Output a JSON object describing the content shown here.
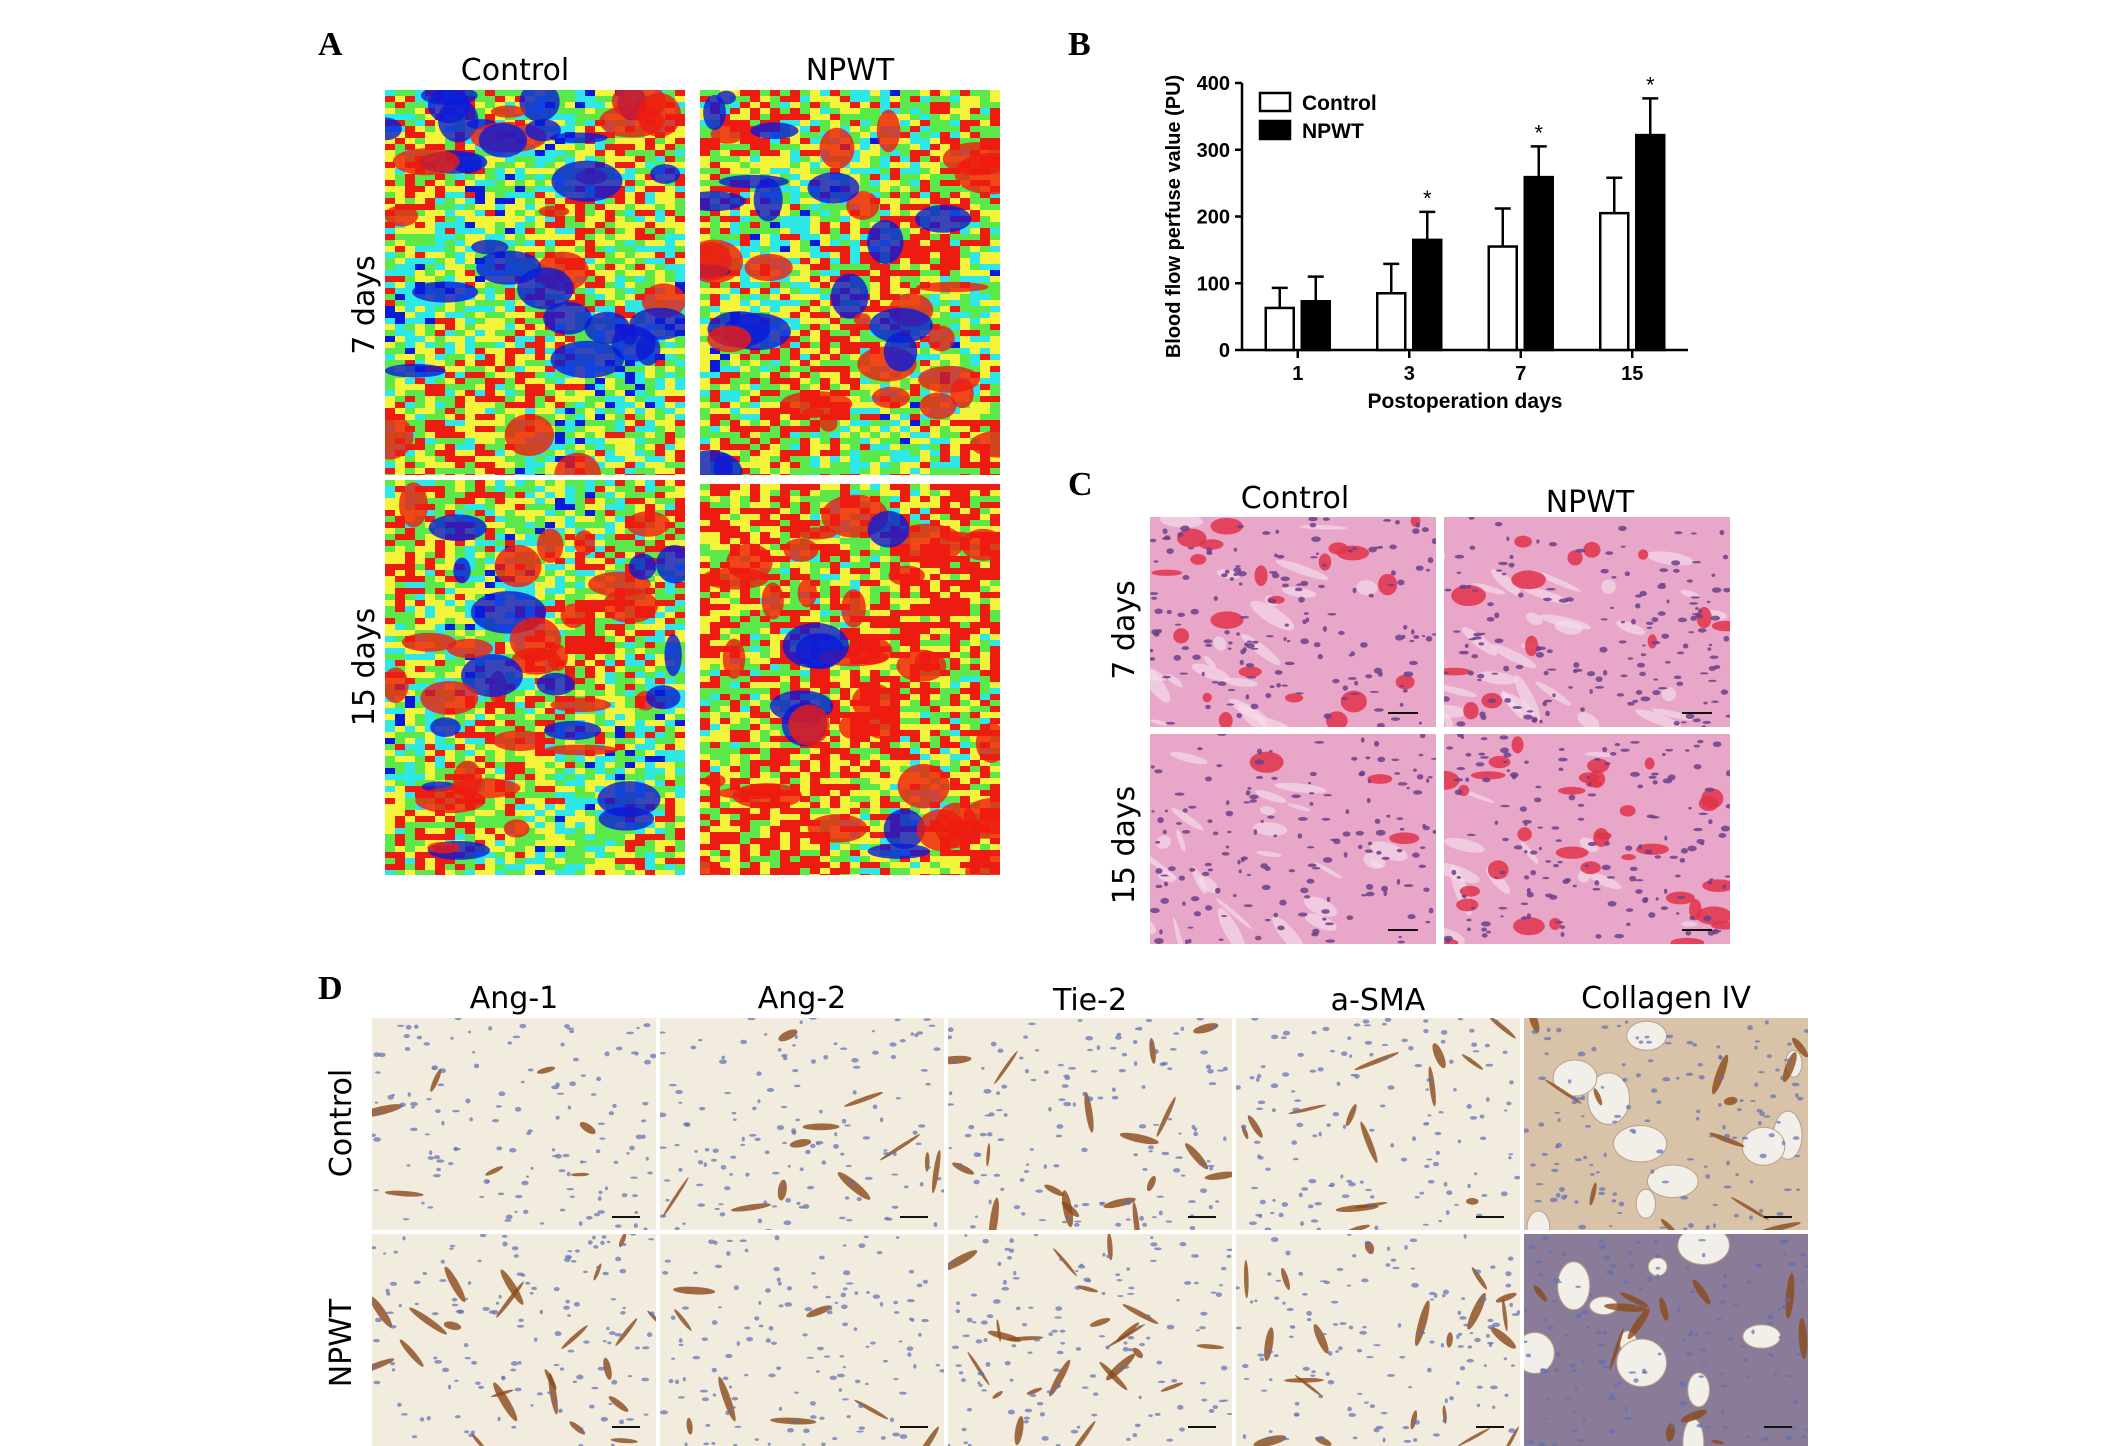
{
  "panel_a": {
    "letter": "A",
    "columns": [
      "Control",
      "NPWT"
    ],
    "rows": [
      "7 days",
      "15 days"
    ]
  },
  "panel_b": {
    "letter": "B"
  },
  "panel_c": {
    "letter": "C",
    "columns": [
      "Control",
      "NPWT"
    ],
    "rows": [
      "7 days",
      "15 days"
    ]
  },
  "panel_d": {
    "letter": "D",
    "columns": [
      "Ang-1",
      "Ang-2",
      "Tie-2",
      "a-SMA",
      "Collagen IV"
    ],
    "rows": [
      "Control",
      "NPWT"
    ]
  },
  "colors": {
    "heat_blue": "#0a1ad8",
    "heat_cyan": "#2ee8e8",
    "heat_green": "#5ae84a",
    "heat_yellow": "#f4f43a",
    "heat_red": "#ee1c10",
    "he_pink": "#e8a6c8",
    "he_purple": "#6a3f8a",
    "ihc_bg": "#f2ecdf",
    "ihc_brown": "#8a4a1a",
    "ihc_blue": "#5f6fb4"
  },
  "chart_data": {
    "type": "bar",
    "title": "",
    "xlabel": "Postoperation days",
    "ylabel": "Blood flow perfuse value (PU)",
    "categories": [
      "1",
      "3",
      "7",
      "15"
    ],
    "ylim": [
      0,
      400
    ],
    "yticks": [
      0,
      100,
      200,
      300,
      400
    ],
    "legend_position": "top-left",
    "series": [
      {
        "name": "Control",
        "color": "#ffffff",
        "values": [
          63,
          85,
          155,
          205
        ],
        "errors": [
          30,
          44,
          57,
          53
        ],
        "significance": [
          "",
          "",
          "",
          ""
        ]
      },
      {
        "name": "NPWT",
        "color": "#000000",
        "values": [
          73,
          165,
          259,
          322
        ],
        "errors": [
          37,
          42,
          46,
          55
        ],
        "significance": [
          "",
          "*",
          "*",
          "*"
        ]
      }
    ]
  }
}
